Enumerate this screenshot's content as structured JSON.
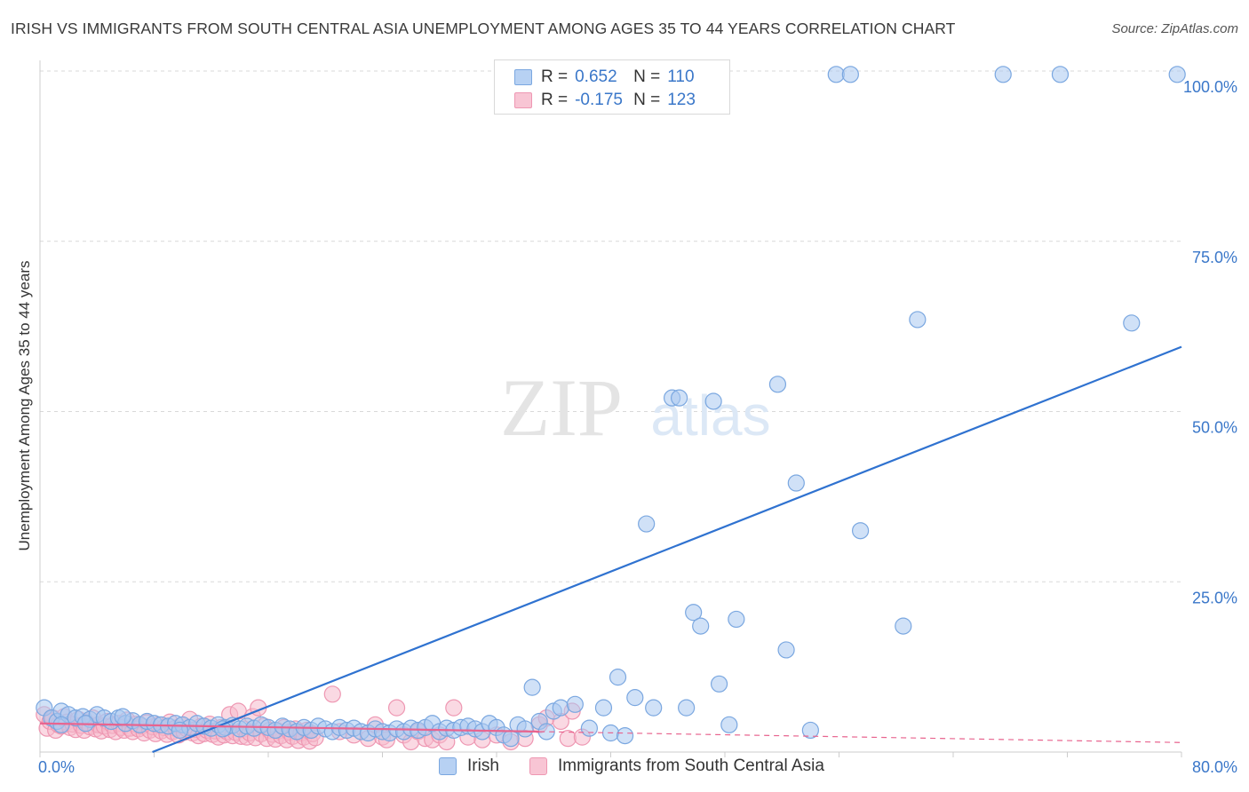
{
  "header": {
    "title": "IRISH VS IMMIGRANTS FROM SOUTH CENTRAL ASIA UNEMPLOYMENT AMONG AGES 35 TO 44 YEARS CORRELATION CHART",
    "source": "Source: ZipAtlas.com"
  },
  "watermark": {
    "zip": "ZIP",
    "atlas": "atlas"
  },
  "legend": {
    "irish": {
      "r_label": "R =",
      "r_value": "0.652",
      "n_label": "N =",
      "n_value": "110"
    },
    "immigrants": {
      "r_label": "R =",
      "r_value": "-0.175",
      "n_label": "N =",
      "n_value": "123"
    }
  },
  "bottom_legend": {
    "irish": "Irish",
    "immigrants": "Immigrants from South Central Asia"
  },
  "colors": {
    "irish_fill": "#a9c8f0",
    "irish_stroke": "#7aa7e0",
    "irish_line": "#2f72d0",
    "imm_fill": "#f6b9cc",
    "imm_stroke": "#ee97b2",
    "imm_line": "#e8648f",
    "axis_text": "#3a77c9",
    "grid": "#d9d9d9"
  },
  "chart_data": {
    "type": "scatter",
    "title": "IRISH VS IMMIGRANTS FROM SOUTH CENTRAL ASIA UNEMPLOYMENT AMONG AGES 35 TO 44 YEARS CORRELATION CHART",
    "xlabel": "",
    "ylabel": "Unemployment Among Ages 35 to 44 years",
    "xlim": [
      0,
      80
    ],
    "ylim": [
      0,
      100
    ],
    "x_tick_labels": [
      "0.0%",
      "80.0%"
    ],
    "y_ticks": [
      25,
      50,
      75,
      100
    ],
    "y_tick_labels": [
      "25.0%",
      "50.0%",
      "75.0%",
      "100.0%"
    ],
    "grid": true,
    "series": [
      {
        "name": "Irish",
        "r": 0.652,
        "n": 110,
        "trend": {
          "x": [
            0,
            80
          ],
          "y": [
            -6.5,
            59.5
          ]
        },
        "points": [
          [
            0.3,
            6.5
          ],
          [
            0.8,
            5
          ],
          [
            1.2,
            4.5
          ],
          [
            1.5,
            6
          ],
          [
            2,
            5.5
          ],
          [
            2.5,
            5
          ],
          [
            3,
            5.2
          ],
          [
            3.5,
            4.8
          ],
          [
            4,
            5.5
          ],
          [
            4.5,
            5
          ],
          [
            5,
            4.5
          ],
          [
            5.5,
            5
          ],
          [
            6,
            4.2
          ],
          [
            6.5,
            4.6
          ],
          [
            7,
            4
          ],
          [
            7.5,
            4.5
          ],
          [
            8,
            4.2
          ],
          [
            8.5,
            4
          ],
          [
            9,
            3.8
          ],
          [
            9.5,
            4.2
          ],
          [
            10,
            4
          ],
          [
            10.5,
            3.6
          ],
          [
            11,
            4.2
          ],
          [
            11.5,
            3.8
          ],
          [
            12,
            3.5
          ],
          [
            12.5,
            4
          ],
          [
            13,
            3.6
          ],
          [
            13.5,
            3.9
          ],
          [
            14,
            3.4
          ],
          [
            14.5,
            3.8
          ],
          [
            15,
            3.5
          ],
          [
            15.5,
            4
          ],
          [
            16,
            3.6
          ],
          [
            16.5,
            3.2
          ],
          [
            17,
            3.8
          ],
          [
            17.5,
            3.4
          ],
          [
            18,
            3
          ],
          [
            18.5,
            3.6
          ],
          [
            19,
            3.2
          ],
          [
            19.5,
            3.8
          ],
          [
            20,
            3.4
          ],
          [
            20.5,
            3
          ],
          [
            21,
            3.6
          ],
          [
            21.5,
            3.2
          ],
          [
            22,
            3.5
          ],
          [
            22.5,
            3
          ],
          [
            23,
            2.8
          ],
          [
            23.5,
            3.4
          ],
          [
            24,
            3
          ],
          [
            24.5,
            2.8
          ],
          [
            25,
            3.4
          ],
          [
            25.5,
            3
          ],
          [
            26,
            3.5
          ],
          [
            26.5,
            3.2
          ],
          [
            27,
            3.6
          ],
          [
            27.5,
            4.2
          ],
          [
            28,
            3
          ],
          [
            28.5,
            3.5
          ],
          [
            29,
            3.2
          ],
          [
            29.5,
            3.6
          ],
          [
            30,
            3.8
          ],
          [
            30.5,
            3.4
          ],
          [
            31,
            3
          ],
          [
            31.5,
            4.2
          ],
          [
            32,
            3.6
          ],
          [
            32.5,
            2.5
          ],
          [
            33,
            2
          ],
          [
            33.5,
            4
          ],
          [
            34,
            3.4
          ],
          [
            34.5,
            9.5
          ],
          [
            35,
            4.5
          ],
          [
            35.5,
            3
          ],
          [
            36,
            6
          ],
          [
            36.5,
            6.5
          ],
          [
            37.5,
            7
          ],
          [
            38.5,
            3.5
          ],
          [
            39.5,
            6.5
          ],
          [
            40,
            2.8
          ],
          [
            40.5,
            11
          ],
          [
            41,
            2.4
          ],
          [
            41.7,
            8
          ],
          [
            42.5,
            33.5
          ],
          [
            43,
            6.5
          ],
          [
            44.3,
            52
          ],
          [
            44.8,
            52
          ],
          [
            45.3,
            6.5
          ],
          [
            45.8,
            20.5
          ],
          [
            46.3,
            18.5
          ],
          [
            47.2,
            51.5
          ],
          [
            47.6,
            10
          ],
          [
            48.3,
            4
          ],
          [
            48.8,
            19.5
          ],
          [
            51.7,
            54
          ],
          [
            52.3,
            15
          ],
          [
            53,
            39.5
          ],
          [
            54,
            3.2
          ],
          [
            55.8,
            99.5
          ],
          [
            56.8,
            99.5
          ],
          [
            57.5,
            32.5
          ],
          [
            60.5,
            18.5
          ],
          [
            61.5,
            63.5
          ],
          [
            67.5,
            99.5
          ],
          [
            71.5,
            99.5
          ],
          [
            76.5,
            63
          ],
          [
            79.7,
            99.5
          ],
          [
            1.5,
            4
          ],
          [
            3.2,
            4.2
          ],
          [
            5.8,
            5.2
          ],
          [
            9.8,
            3.2
          ],
          [
            12.8,
            3.4
          ]
        ]
      },
      {
        "name": "Immigrants from South Central Asia",
        "r": -0.175,
        "n": 123,
        "trend": {
          "x": [
            0,
            35
          ],
          "y": [
            4.2,
            3.0
          ]
        },
        "trend_dashed": {
          "x": [
            35,
            80
          ],
          "y": [
            3.0,
            1.4
          ]
        },
        "points": [
          [
            0.3,
            5.5
          ],
          [
            0.5,
            3.5
          ],
          [
            0.7,
            4.5
          ],
          [
            0.9,
            5
          ],
          [
            1.1,
            3.2
          ],
          [
            1.3,
            4
          ],
          [
            1.5,
            3.8
          ],
          [
            1.7,
            5.2
          ],
          [
            1.9,
            4.4
          ],
          [
            2.1,
            3.6
          ],
          [
            2.3,
            4.1
          ],
          [
            2.5,
            3.3
          ],
          [
            2.7,
            4.8
          ],
          [
            2.9,
            3.9
          ],
          [
            3.1,
            3.2
          ],
          [
            3.3,
            4.3
          ],
          [
            3.5,
            3.7
          ],
          [
            3.7,
            5
          ],
          [
            3.9,
            3.4
          ],
          [
            4.1,
            4
          ],
          [
            4.3,
            3.1
          ],
          [
            4.5,
            3.8
          ],
          [
            4.7,
            4.5
          ],
          [
            4.9,
            3.3
          ],
          [
            5.1,
            3.9
          ],
          [
            5.3,
            3
          ],
          [
            5.5,
            4.2
          ],
          [
            5.7,
            3.6
          ],
          [
            5.9,
            3.2
          ],
          [
            6.1,
            4.7
          ],
          [
            6.3,
            3.5
          ],
          [
            6.5,
            3
          ],
          [
            6.7,
            4.1
          ],
          [
            6.9,
            3.4
          ],
          [
            7.1,
            3.8
          ],
          [
            7.3,
            2.8
          ],
          [
            7.5,
            4.3
          ],
          [
            7.7,
            3.2
          ],
          [
            7.9,
            3.7
          ],
          [
            8.1,
            2.7
          ],
          [
            8.3,
            4
          ],
          [
            8.5,
            3.1
          ],
          [
            8.7,
            3.6
          ],
          [
            8.9,
            2.6
          ],
          [
            9.1,
            4.4
          ],
          [
            9.3,
            3
          ],
          [
            9.5,
            3.5
          ],
          [
            9.7,
            2.5
          ],
          [
            9.9,
            3.9
          ],
          [
            10.1,
            2.9
          ],
          [
            10.3,
            3.4
          ],
          [
            10.5,
            4.8
          ],
          [
            10.7,
            2.8
          ],
          [
            10.9,
            3.3
          ],
          [
            11.1,
            2.4
          ],
          [
            11.3,
            3.8
          ],
          [
            11.5,
            2.7
          ],
          [
            11.7,
            3.2
          ],
          [
            11.9,
            4.1
          ],
          [
            12.1,
            2.6
          ],
          [
            12.3,
            3.1
          ],
          [
            12.5,
            2.2
          ],
          [
            12.7,
            3.6
          ],
          [
            12.9,
            2.5
          ],
          [
            13.1,
            3
          ],
          [
            13.3,
            5.5
          ],
          [
            13.5,
            2.4
          ],
          [
            13.7,
            2.9
          ],
          [
            13.9,
            6
          ],
          [
            14.1,
            2.3
          ],
          [
            14.3,
            3.4
          ],
          [
            14.5,
            2.2
          ],
          [
            14.7,
            2.8
          ],
          [
            14.9,
            5.2
          ],
          [
            15.1,
            2.1
          ],
          [
            15.3,
            6.5
          ],
          [
            15.5,
            2.7
          ],
          [
            15.7,
            3.8
          ],
          [
            15.9,
            2
          ],
          [
            16.1,
            3.2
          ],
          [
            16.3,
            2.6
          ],
          [
            16.5,
            1.9
          ],
          [
            16.7,
            3.1
          ],
          [
            16.9,
            2.4
          ],
          [
            17.1,
            3.6
          ],
          [
            17.3,
            1.8
          ],
          [
            17.5,
            2.9
          ],
          [
            17.7,
            2.3
          ],
          [
            17.9,
            3.4
          ],
          [
            18.1,
            1.7
          ],
          [
            18.3,
            2.8
          ],
          [
            18.5,
            2.2
          ],
          [
            18.7,
            3.2
          ],
          [
            18.9,
            1.6
          ],
          [
            19.1,
            2.7
          ],
          [
            19.3,
            2.1
          ],
          [
            20.5,
            8.5
          ],
          [
            21,
            3
          ],
          [
            22,
            2.5
          ],
          [
            23,
            2
          ],
          [
            23.5,
            4
          ],
          [
            24,
            2.2
          ],
          [
            24.3,
            1.8
          ],
          [
            25,
            6.5
          ],
          [
            25.5,
            2.5
          ],
          [
            26,
            1.5
          ],
          [
            26.5,
            3
          ],
          [
            27,
            2
          ],
          [
            27.5,
            1.8
          ],
          [
            28,
            2.5
          ],
          [
            28.5,
            1.5
          ],
          [
            29,
            6.5
          ],
          [
            30,
            2.2
          ],
          [
            31,
            1.8
          ],
          [
            32,
            2.5
          ],
          [
            33,
            1.5
          ],
          [
            34,
            2
          ],
          [
            35,
            4
          ],
          [
            35.5,
            5
          ],
          [
            36.5,
            4.5
          ],
          [
            37,
            2
          ],
          [
            37.3,
            6
          ],
          [
            38,
            2.2
          ]
        ]
      }
    ]
  }
}
